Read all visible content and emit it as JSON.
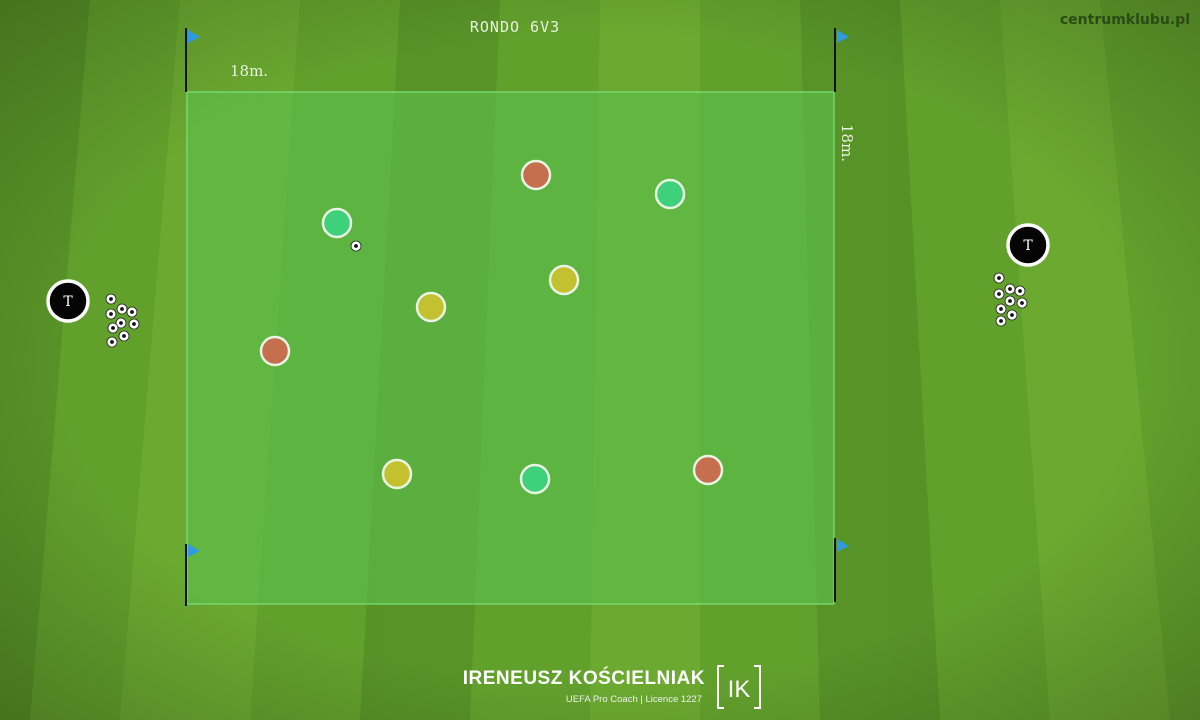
{
  "diagram": {
    "title": "RONDO 6V3",
    "site": "centrumklubu.pl",
    "dimension_top": "18m.",
    "dimension_side": "18m."
  },
  "coaches": {
    "marker_label": "T"
  },
  "footer": {
    "author": "IRENEUSZ KOŚCIELNIAK",
    "credentials": "UEFA Pro Coach  |  Licence 1227",
    "logo_text": "IK"
  },
  "colors": {
    "grass_light": "#6aa52f",
    "grass_dark": "#57902a",
    "area_fill": "#5cbd4a",
    "team_green": "#3fd07c",
    "team_yellow": "#c4c130",
    "team_orange": "#c56f4e",
    "flag": "#2f9ae0"
  },
  "legend_counts": {
    "green_players": 3,
    "yellow_players": 3,
    "orange_players": 3,
    "coaches": 2
  }
}
